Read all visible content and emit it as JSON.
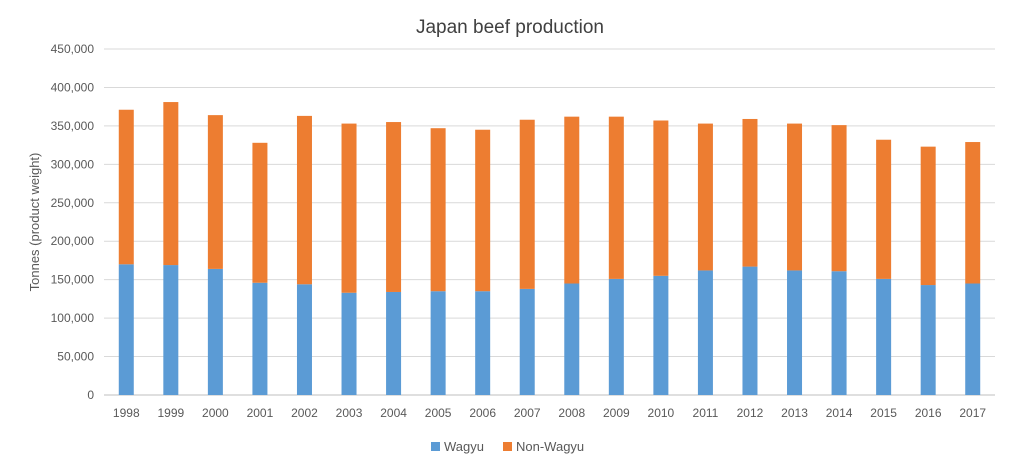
{
  "chart_data": {
    "type": "bar",
    "stacked": true,
    "title": "Japan beef production",
    "ylabel": "Tonnes (product weight)",
    "xlabel": "",
    "ylim": [
      0,
      450000
    ],
    "y_ticks": [
      0,
      50000,
      100000,
      150000,
      200000,
      250000,
      300000,
      350000,
      400000,
      450000
    ],
    "y_tick_labels": [
      "0",
      "50,000",
      "100,000",
      "150,000",
      "200,000",
      "250,000",
      "300,000",
      "350,000",
      "400,000",
      "450,000"
    ],
    "grid": true,
    "legend_position": "bottom",
    "categories": [
      "1998",
      "1999",
      "2000",
      "2001",
      "2002",
      "2003",
      "2004",
      "2005",
      "2006",
      "2007",
      "2008",
      "2009",
      "2010",
      "2011",
      "2012",
      "2013",
      "2014",
      "2015",
      "2016",
      "2017"
    ],
    "series": [
      {
        "name": "Wagyu",
        "color": "#5b9bd5",
        "values": [
          170000,
          169000,
          164000,
          146000,
          144000,
          133000,
          134000,
          135000,
          135000,
          138000,
          145000,
          151000,
          155000,
          162000,
          167000,
          162000,
          161000,
          151000,
          143000,
          145000
        ]
      },
      {
        "name": "Non-Wagyu",
        "color": "#ed7d31",
        "values": [
          201000,
          212000,
          200000,
          182000,
          219000,
          220000,
          221000,
          212000,
          210000,
          220000,
          217000,
          211000,
          202000,
          191000,
          192000,
          191000,
          190000,
          181000,
          180000,
          184000
        ]
      }
    ]
  }
}
